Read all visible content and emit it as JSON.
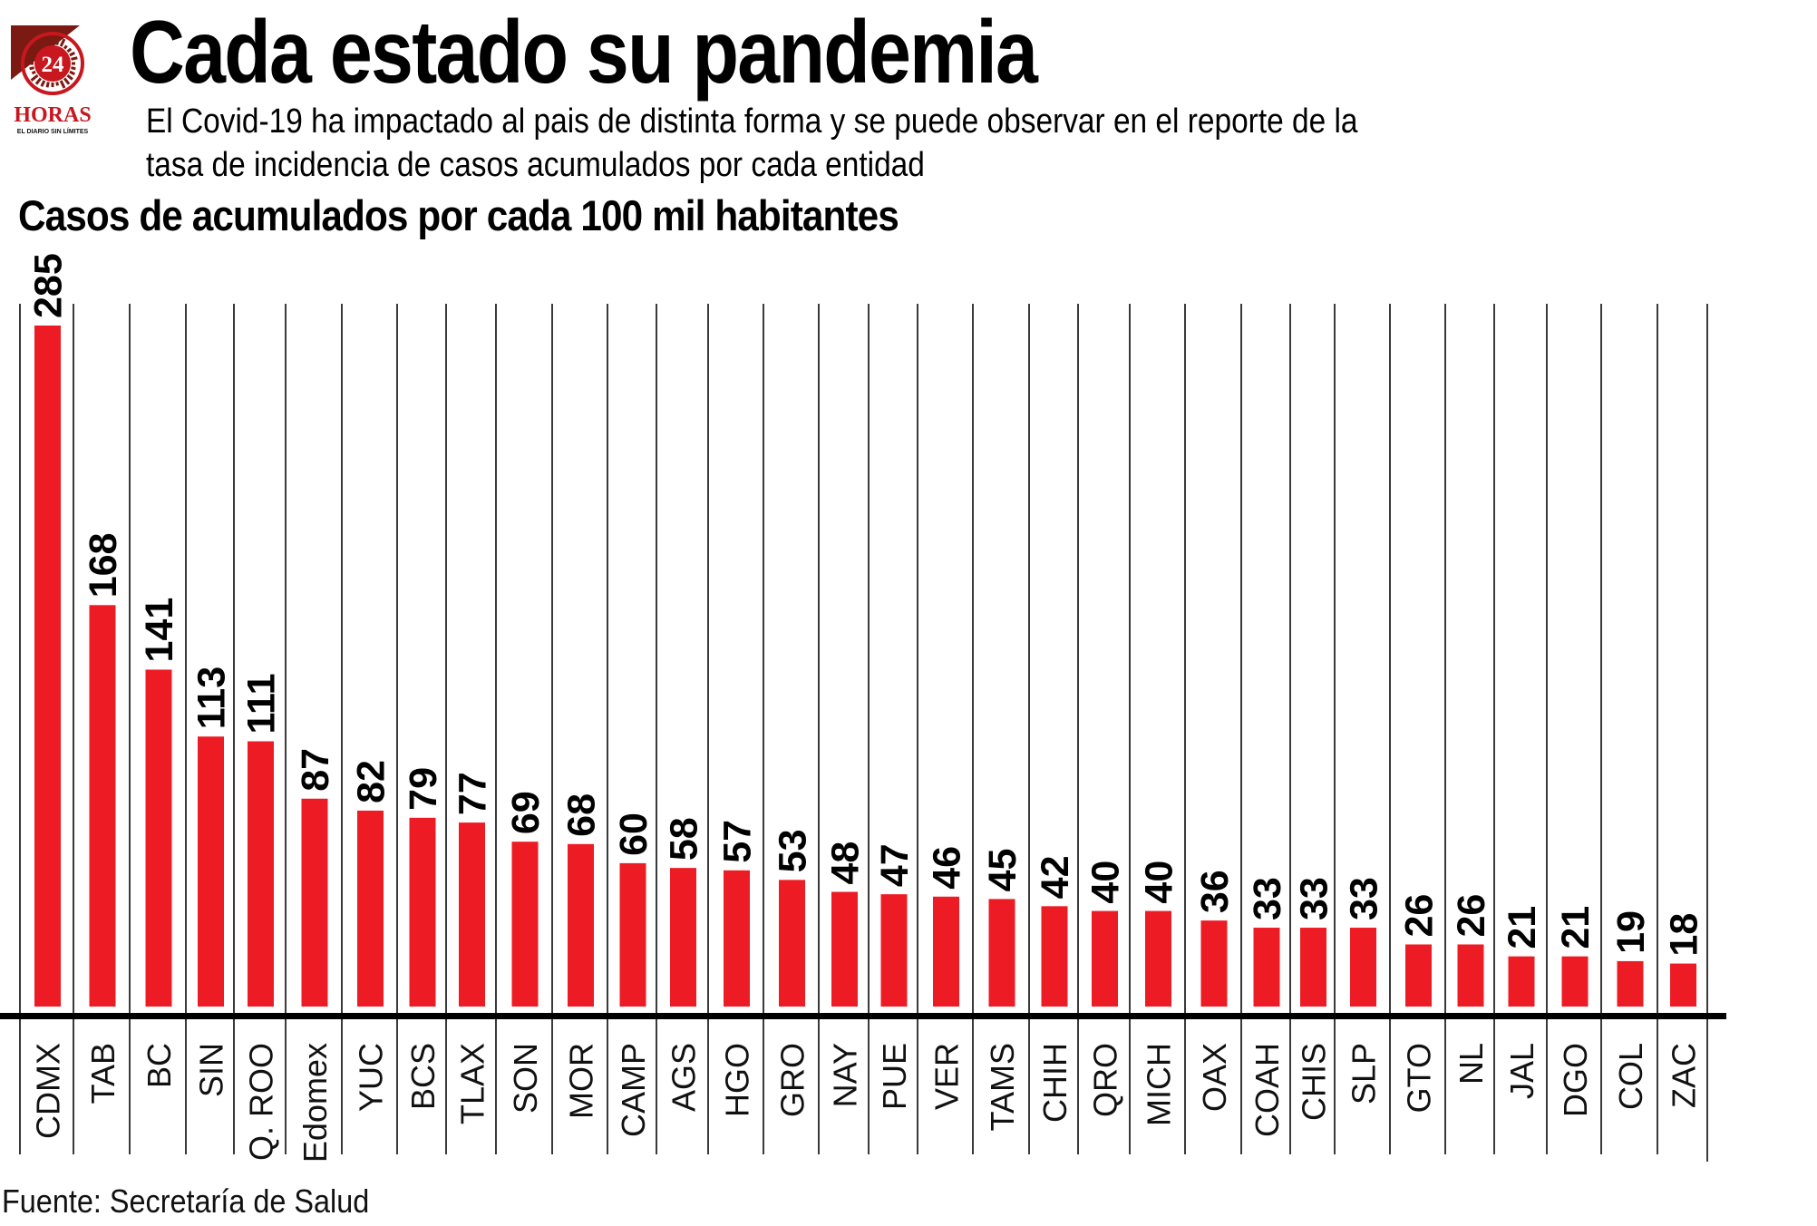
{
  "header": {
    "title": "Cada estado su pandemia",
    "subtitle_line1": "El Covid-19 ha impactado al pais de distinta forma y se puede observar en el reporte de la",
    "subtitle_line2": "tasa de incidencia de casos acumulados por cada entidad",
    "logo": {
      "number": "24",
      "name": "HORAS",
      "tagline": "EL DIARIO SIN LÍMITES",
      "brand_color": "#C8171E",
      "dark_color": "#7A1A12"
    }
  },
  "footer": {
    "source": "Fuente: Secretaría de Salud"
  },
  "colors": {
    "bar": "#ED1C24",
    "axis": "#000000",
    "grid": "#3a3a3a"
  },
  "chart_data": {
    "type": "bar",
    "title": "Casos de acumulados por cada 100 mil habitantes",
    "xlabel": "",
    "ylabel": "",
    "orientation": "vertical",
    "data_labels": "rotated-above-bars",
    "category_labels": "rotated-below-axis",
    "grid": "vertical-separators",
    "ylim": [
      0,
      285
    ],
    "categories": [
      "CDMX",
      "TAB",
      "BC",
      "SIN",
      "Q. ROO",
      "Edomex",
      "YUC",
      "BCS",
      "TLAX",
      "SON",
      "MOR",
      "CAMP",
      "AGS",
      "HGO",
      "GRO",
      "NAY",
      "PUE",
      "VER",
      "TAMS",
      "CHIH",
      "QRO",
      "MICH",
      "OAX",
      "COAH",
      "CHIS",
      "SLP",
      "GTO",
      "NL",
      "JAL",
      "DGO",
      "COL",
      "ZAC"
    ],
    "values": [
      285,
      168,
      141,
      113,
      111,
      87,
      82,
      79,
      77,
      69,
      68,
      60,
      58,
      57,
      53,
      48,
      47,
      46,
      45,
      42,
      40,
      40,
      36,
      33,
      33,
      33,
      26,
      26,
      21,
      21,
      19,
      18
    ]
  }
}
